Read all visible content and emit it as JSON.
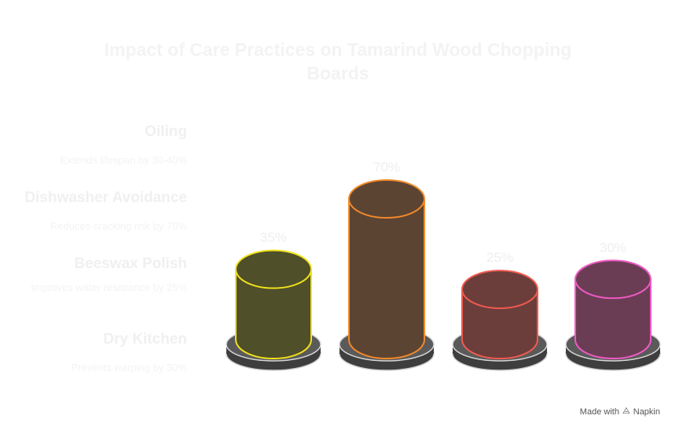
{
  "title": "Impact of Care Practices on Tamarind Wood Chopping Boards",
  "legend": [
    {
      "title": "Oiling",
      "desc": "Extends lifespan by 30-40%"
    },
    {
      "title": "Dishwasher Avoidance",
      "desc": "Reduces cracking risk by 70%"
    },
    {
      "title": "Beeswax Polish",
      "desc": "Improves water resistance by 25%"
    },
    {
      "title": "Dry Kitchen",
      "desc": "Prevents warping by 30%"
    }
  ],
  "chart_data": {
    "type": "bar",
    "categories": [
      "Oiling",
      "Dishwasher Avoidance",
      "Beeswax Polish",
      "Dry Kitchen"
    ],
    "values": [
      35,
      70,
      25,
      30
    ],
    "value_labels": [
      "35%",
      "70%",
      "25%",
      "30%"
    ],
    "ylim": [
      0,
      70
    ],
    "grid": false,
    "colors": {
      "fills": [
        "#4f4f2a",
        "#5c4433",
        "#6b3e3b",
        "#6b3d55"
      ],
      "strokes": [
        "#f2e21a",
        "#f2892a",
        "#f25a50",
        "#f05ac4"
      ],
      "base": "#5a5a5a"
    }
  },
  "footer": {
    "made_with": "Made with",
    "brand": "Napkin",
    "icon": "napkin-icon"
  }
}
